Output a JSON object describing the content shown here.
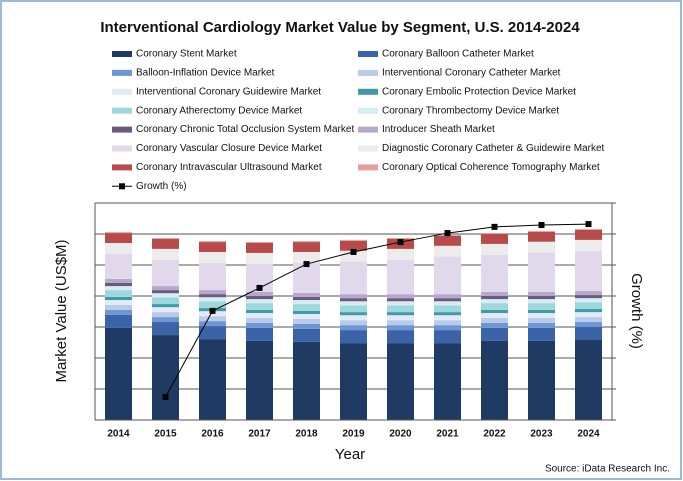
{
  "chart_data": {
    "type": "bar",
    "stacked": true,
    "title": "Interventional Cardiology Market Value by Segment, U.S. 2014-2024",
    "xlabel": "Year",
    "ylabel": "Market Value (US$M)",
    "y2label": "Growth (%)",
    "source": "Source: iData Research Inc.",
    "categories": [
      "2014",
      "2015",
      "2016",
      "2017",
      "2018",
      "2019",
      "2020",
      "2021",
      "2022",
      "2023",
      "2024"
    ],
    "ylim": [
      0,
      7
    ],
    "yticks": [
      0,
      1,
      2,
      3,
      4,
      5,
      6,
      7
    ],
    "y2lim": [
      0,
      7
    ],
    "y2ticks": [
      0,
      1,
      2,
      3,
      4,
      5,
      6,
      7
    ],
    "grid": true,
    "series": [
      {
        "name": "Coronary Stent Market",
        "color": "#1f3b63",
        "values": [
          2.97,
          2.74,
          2.61,
          2.55,
          2.52,
          2.48,
          2.48,
          2.48,
          2.55,
          2.55,
          2.58
        ]
      },
      {
        "name": "Coronary Balloon Catheter Market",
        "color": "#3a63a8",
        "values": [
          0.42,
          0.42,
          0.42,
          0.42,
          0.42,
          0.42,
          0.42,
          0.42,
          0.42,
          0.42,
          0.42
        ]
      },
      {
        "name": "Balloon-Inflation Device Market",
        "color": "#6f96d4",
        "values": [
          0.16,
          0.16,
          0.16,
          0.16,
          0.16,
          0.16,
          0.16,
          0.16,
          0.16,
          0.16,
          0.16
        ]
      },
      {
        "name": "Interventional Coronary Catheter Market",
        "color": "#b9cbe9",
        "values": [
          0.16,
          0.16,
          0.16,
          0.16,
          0.16,
          0.16,
          0.16,
          0.16,
          0.16,
          0.16,
          0.16
        ]
      },
      {
        "name": "Interventional Coronary Guidewire Market",
        "color": "#e3eaf5",
        "values": [
          0.16,
          0.16,
          0.16,
          0.16,
          0.16,
          0.16,
          0.16,
          0.16,
          0.16,
          0.16,
          0.16
        ]
      },
      {
        "name": "Coronary Embolic Protection Device Market",
        "color": "#3f9aa8",
        "values": [
          0.1,
          0.1,
          0.1,
          0.1,
          0.1,
          0.1,
          0.1,
          0.1,
          0.1,
          0.1,
          0.1
        ]
      },
      {
        "name": "Coronary Atherectomy Device Market",
        "color": "#9ed8dc",
        "values": [
          0.22,
          0.22,
          0.22,
          0.22,
          0.22,
          0.22,
          0.22,
          0.22,
          0.22,
          0.22,
          0.22
        ]
      },
      {
        "name": "Coronary Thrombectomy Device Market",
        "color": "#d5eef2",
        "values": [
          0.13,
          0.13,
          0.13,
          0.13,
          0.13,
          0.13,
          0.13,
          0.13,
          0.13,
          0.13,
          0.13
        ]
      },
      {
        "name": "Coronary Chronic Total Occlusion System Market",
        "color": "#6b5b80",
        "values": [
          0.1,
          0.1,
          0.1,
          0.1,
          0.1,
          0.1,
          0.1,
          0.1,
          0.1,
          0.1,
          0.1
        ]
      },
      {
        "name": "Introducer Sheath Market",
        "color": "#b8a9cc",
        "values": [
          0.13,
          0.13,
          0.13,
          0.13,
          0.13,
          0.13,
          0.13,
          0.13,
          0.13,
          0.13,
          0.13
        ]
      },
      {
        "name": "Coronary Vascular Closure Device Market",
        "color": "#e1d8eb",
        "values": [
          0.81,
          0.85,
          0.88,
          0.91,
          0.97,
          1.05,
          1.11,
          1.21,
          1.2,
          1.27,
          1.3
        ]
      },
      {
        "name": "Diagnostic Coronary Catheter & Guidewire Market",
        "color": "#ececec",
        "values": [
          0.35,
          0.35,
          0.35,
          0.35,
          0.35,
          0.35,
          0.35,
          0.35,
          0.35,
          0.35,
          0.35
        ]
      },
      {
        "name": "Coronary Intravascular Ultrasound Market",
        "color": "#b84a4a",
        "values": [
          0.32,
          0.32,
          0.32,
          0.32,
          0.32,
          0.32,
          0.32,
          0.32,
          0.32,
          0.32,
          0.32
        ]
      },
      {
        "name": "Coronary Optical Coherence Tomography Market",
        "color": "#e3a09c",
        "values": [
          0.03,
          0.03,
          0.03,
          0.03,
          0.03,
          0.03,
          0.03,
          0.03,
          0.03,
          0.03,
          0.03
        ]
      },
      {
        "name": "Growth (%)",
        "color": "#000000",
        "type": "line",
        "axis": "y2",
        "values": [
          null,
          0.74,
          3.52,
          4.26,
          5.03,
          5.42,
          5.74,
          6.03,
          6.23,
          6.29,
          6.32
        ]
      }
    ]
  }
}
